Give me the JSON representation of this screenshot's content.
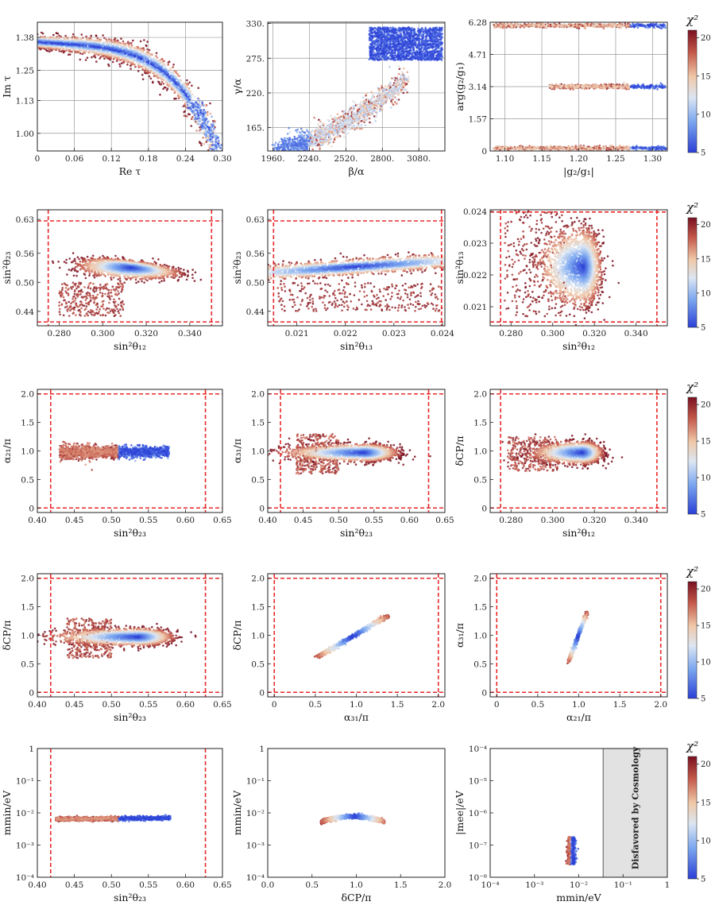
{
  "figure": {
    "colorbar": {
      "title": "χ²",
      "min": 5,
      "max": 21,
      "ticks": [
        "5",
        "10",
        "15",
        "20"
      ],
      "tick_values": [
        5,
        10,
        15,
        20
      ],
      "colors": [
        "#2b3fd6",
        "#7aa6f0",
        "#dce6f2",
        "#f0c8a8",
        "#c4584a",
        "#7a1020"
      ]
    },
    "boundary_color": "#e8282a"
  },
  "chart_data": [
    {
      "id": "p11",
      "type": "scatter",
      "xlabel": "Re τ",
      "ylabel": "Im τ",
      "xlim": [
        0,
        0.3
      ],
      "ylim": [
        0.93,
        1.44
      ],
      "xticks": [
        "0",
        "0.06",
        "0.12",
        "0.18",
        "0.24",
        "0.30"
      ],
      "xtick_values": [
        0,
        0.06,
        0.12,
        0.18,
        0.24,
        0.3
      ],
      "yticks": [
        "1.00",
        "1.13",
        "1.25",
        "1.38"
      ],
      "ytick_values": [
        1.0,
        1.13,
        1.25,
        1.38
      ],
      "grid": true,
      "region": "arc near |τ|=1.38 curving from (0,1.36) down to (0.285,0.98)"
    },
    {
      "id": "p12",
      "type": "scatter",
      "xlabel": "β/α",
      "ylabel": "γ/α",
      "xlim": [
        1920,
        3280
      ],
      "ylim": [
        128,
        332
      ],
      "xticks": [
        "1960.",
        "2240.",
        "2520.",
        "2800.",
        "3080."
      ],
      "xtick_values": [
        1960,
        2240,
        2520,
        2800,
        3080
      ],
      "yticks": [
        "165.",
        "220.",
        "275.",
        "330."
      ],
      "ytick_values": [
        165,
        220,
        275,
        330
      ],
      "grid": true,
      "region": "curved band from (1980,130) rising to dense blob at β≈2700–3200, γ≈270–325"
    },
    {
      "id": "p13",
      "type": "scatter",
      "xlabel": "|g₂/g₁|",
      "ylabel": "arg(g₂/g₁)",
      "xlim": [
        1.08,
        1.32
      ],
      "ylim": [
        0,
        6.28
      ],
      "xticks": [
        "1.10",
        "1.15",
        "1.20",
        "1.25",
        "1.30"
      ],
      "xtick_values": [
        1.1,
        1.15,
        1.2,
        1.25,
        1.3
      ],
      "yticks": [
        "0",
        "1.57",
        "3.14",
        "4.71",
        "6.28"
      ],
      "ytick_values": [
        0,
        1.57,
        3.14,
        4.71,
        6.28
      ],
      "grid": true,
      "region": "three thin horizontal bands at arg≈0.15, 3.14, 6.1; best fit near |g₂/g₁|≈1.29–1.31"
    },
    {
      "id": "p21",
      "type": "scatter",
      "xlabel": "sin²θ₁₂",
      "ylabel": "sin²θ₂₃",
      "xlim": [
        0.27,
        0.355
      ],
      "ylim": [
        0.41,
        0.65
      ],
      "xticks": [
        "0.280",
        "0.300",
        "0.320",
        "0.340"
      ],
      "xtick_values": [
        0.28,
        0.3,
        0.32,
        0.34
      ],
      "yticks": [
        "0.44",
        "0.50",
        "0.56",
        "0.63"
      ],
      "ytick_values": [
        0.44,
        0.5,
        0.56,
        0.63
      ],
      "bounds": {
        "x": [
          0.275,
          0.35
        ],
        "y": [
          0.418,
          0.627
        ]
      }
    },
    {
      "id": "p22",
      "type": "scatter",
      "xlabel": "sin²θ₁₃",
      "ylabel": "sin²θ₂₃",
      "xlim": [
        0.0204,
        0.02405
      ],
      "ylim": [
        0.41,
        0.65
      ],
      "xticks": [
        "0.021",
        "0.022",
        "0.023",
        "0.024"
      ],
      "xtick_values": [
        0.021,
        0.022,
        0.023,
        0.024
      ],
      "yticks": [
        "0.44",
        "0.50",
        "0.56",
        "0.63"
      ],
      "ytick_values": [
        0.44,
        0.5,
        0.56,
        0.63
      ],
      "bounds": {
        "x": [
          0.02052,
          0.02398
        ],
        "y": [
          0.418,
          0.627
        ]
      }
    },
    {
      "id": "p23",
      "type": "scatter",
      "xlabel": "sin²θ₁₂",
      "ylabel": "sin²θ₁₃",
      "xlim": [
        0.27,
        0.355
      ],
      "ylim": [
        0.0204,
        0.02405
      ],
      "xticks": [
        "0.280",
        "0.300",
        "0.320",
        "0.340"
      ],
      "xtick_values": [
        0.28,
        0.3,
        0.32,
        0.34
      ],
      "yticks": [
        "0.021",
        "0.022",
        "0.023",
        "0.024"
      ],
      "ytick_values": [
        0.021,
        0.022,
        0.023,
        0.024
      ],
      "bounds": {
        "x": [
          0.275,
          0.35
        ],
        "y": [
          0.02052,
          0.02398
        ]
      }
    },
    {
      "id": "p31",
      "type": "scatter",
      "xlabel": "sin²θ₂₃",
      "ylabel": "α₂₁/π",
      "xlim": [
        0.4,
        0.65
      ],
      "ylim": [
        -0.08,
        2.08
      ],
      "xticks": [
        "0.40",
        "0.45",
        "0.50",
        "0.55",
        "0.60",
        "0.65"
      ],
      "xtick_values": [
        0.4,
        0.45,
        0.5,
        0.55,
        0.6,
        0.65
      ],
      "yticks": [
        "0",
        "0.5",
        "1.0",
        "1.5",
        "2.0"
      ],
      "ytick_values": [
        0,
        0.5,
        1.0,
        1.5,
        2.0
      ],
      "bounds": {
        "x": [
          0.418,
          0.627
        ],
        "y": [
          0,
          2
        ]
      }
    },
    {
      "id": "p32",
      "type": "scatter",
      "xlabel": "sin²θ₂₃",
      "ylabel": "α₃₁/π",
      "xlim": [
        0.4,
        0.65
      ],
      "ylim": [
        -0.08,
        2.08
      ],
      "xticks": [
        "0.40",
        "0.45",
        "0.50",
        "0.55",
        "0.60",
        "0.65"
      ],
      "xtick_values": [
        0.4,
        0.45,
        0.5,
        0.55,
        0.6,
        0.65
      ],
      "yticks": [
        "0",
        "0.5",
        "1.0",
        "1.5",
        "2.0"
      ],
      "ytick_values": [
        0,
        0.5,
        1.0,
        1.5,
        2.0
      ],
      "bounds": {
        "x": [
          0.418,
          0.627
        ],
        "y": [
          0,
          2
        ]
      }
    },
    {
      "id": "p33",
      "type": "scatter",
      "xlabel": "sin²θ₁₂",
      "ylabel": "δCP/π",
      "xlim": [
        0.27,
        0.355
      ],
      "ylim": [
        -0.08,
        2.08
      ],
      "xticks": [
        "0.280",
        "0.300",
        "0.320",
        "0.340"
      ],
      "xtick_values": [
        0.28,
        0.3,
        0.32,
        0.34
      ],
      "yticks": [
        "0",
        "0.5",
        "1.0",
        "1.5",
        "2.0"
      ],
      "ytick_values": [
        0,
        0.5,
        1.0,
        1.5,
        2.0
      ],
      "bounds": {
        "x": [
          0.275,
          0.35
        ],
        "y": [
          0,
          2
        ]
      }
    },
    {
      "id": "p41",
      "type": "scatter",
      "xlabel": "sin²θ₂₃",
      "ylabel": "δCP/π",
      "xlim": [
        0.4,
        0.65
      ],
      "ylim": [
        -0.08,
        2.08
      ],
      "xticks": [
        "0.40",
        "0.45",
        "0.50",
        "0.55",
        "0.60",
        "0.65"
      ],
      "xtick_values": [
        0.4,
        0.45,
        0.5,
        0.55,
        0.6,
        0.65
      ],
      "yticks": [
        "0",
        "0.5",
        "1.0",
        "1.5",
        "2.0"
      ],
      "ytick_values": [
        0,
        0.5,
        1.0,
        1.5,
        2.0
      ],
      "bounds": {
        "x": [
          0.418,
          0.627
        ],
        "y": [
          0,
          2
        ]
      }
    },
    {
      "id": "p42",
      "type": "scatter",
      "xlabel": "α₃₁/π",
      "ylabel": "δCP/π",
      "xlim": [
        -0.08,
        2.08
      ],
      "ylim": [
        -0.08,
        2.08
      ],
      "xticks": [
        "0",
        "0.5",
        "1.0",
        "1.5",
        "2.0"
      ],
      "xtick_values": [
        0,
        0.5,
        1.0,
        1.5,
        2.0
      ],
      "yticks": [
        "0",
        "0.5",
        "1.0",
        "1.5",
        "2.0"
      ],
      "ytick_values": [
        0,
        0.5,
        1.0,
        1.5,
        2.0
      ],
      "bounds": {
        "x": [
          0,
          2
        ],
        "y": [
          0,
          2
        ]
      }
    },
    {
      "id": "p43",
      "type": "scatter",
      "xlabel": "α₂₁/π",
      "ylabel": "α₃₁/π",
      "xlim": [
        -0.08,
        2.08
      ],
      "ylim": [
        -0.08,
        2.08
      ],
      "xticks": [
        "0",
        "0.5",
        "1.0",
        "1.5",
        "2.0"
      ],
      "xtick_values": [
        0,
        0.5,
        1.0,
        1.5,
        2.0
      ],
      "yticks": [
        "0",
        "0.5",
        "1.0",
        "1.5",
        "2.0"
      ],
      "ytick_values": [
        0,
        0.5,
        1.0,
        1.5,
        2.0
      ],
      "bounds": {
        "x": [
          0,
          2
        ],
        "y": [
          0,
          2
        ]
      }
    },
    {
      "id": "p51",
      "type": "scatter",
      "xlabel": "sin²θ₂₃",
      "ylabel": "mmin/eV",
      "xlim": [
        0.4,
        0.65
      ],
      "ylim": [
        -4,
        0
      ],
      "yscale": "log",
      "xticks": [
        "0.40",
        "0.45",
        "0.50",
        "0.55",
        "0.60",
        "0.65"
      ],
      "xtick_values": [
        0.4,
        0.45,
        0.5,
        0.55,
        0.6,
        0.65
      ],
      "yticks": [
        "1",
        "10⁻¹",
        "10⁻²",
        "10⁻³",
        "10⁻⁴"
      ],
      "ytick_values": [
        0,
        -1,
        -2,
        -3,
        -4
      ],
      "bounds": {
        "x": [
          0.418,
          0.627
        ]
      }
    },
    {
      "id": "p52",
      "type": "scatter",
      "xlabel": "δCP/π",
      "ylabel": "mmin/eV",
      "xlim": [
        0,
        2
      ],
      "ylim": [
        -4,
        0
      ],
      "yscale": "log",
      "xticks": [
        "0.0",
        "0.5",
        "1.0",
        "1.5",
        "2.0"
      ],
      "xtick_values": [
        0,
        0.5,
        1.0,
        1.5,
        2.0
      ],
      "yticks": [
        "1",
        "10⁻¹",
        "10⁻²",
        "10⁻³",
        "10⁻⁴"
      ],
      "ytick_values": [
        0,
        -1,
        -2,
        -3,
        -4
      ]
    },
    {
      "id": "p53",
      "type": "scatter",
      "xlabel": "mmin/eV",
      "ylabel": "|mee|/eV",
      "xlim": [
        -4,
        0
      ],
      "ylim": [
        -8,
        -4
      ],
      "xscale": "log",
      "yscale": "log",
      "xticks": [
        "10⁻⁴",
        "10⁻³",
        "10⁻²",
        "10⁻¹",
        "1"
      ],
      "xtick_values": [
        -4,
        -3,
        -2,
        -1,
        0
      ],
      "yticks": [
        "10⁻⁴",
        "10⁻⁵",
        "10⁻⁶",
        "10⁻⁷",
        "10⁻⁸"
      ],
      "ytick_values": [
        -4,
        -5,
        -6,
        -7,
        -8
      ],
      "shaded_region": {
        "x_from": -1.45,
        "x_to": 0,
        "label": "Disfavored by Cosmology"
      }
    }
  ]
}
